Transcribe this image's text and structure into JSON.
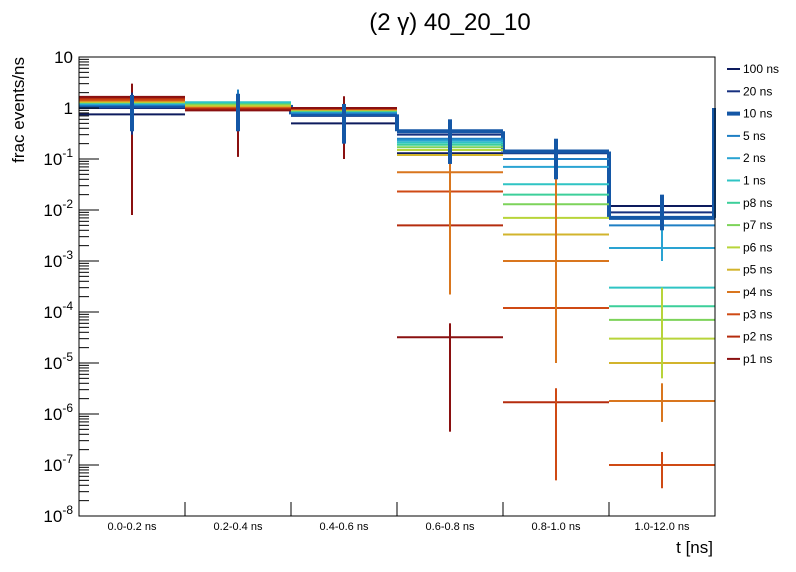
{
  "chart_data": {
    "type": "step-histogram",
    "title": "(2 γ) 40_20_10",
    "xlabel": "t [ns]",
    "ylabel": "frac events/ns",
    "yscale": "log",
    "ylim": [
      1e-08,
      10
    ],
    "categories": [
      "0.0-0.2 ns",
      "0.2-0.4 ns",
      "0.4-0.6 ns",
      "0.6-0.8 ns",
      "0.8-1.0 ns",
      "1.0-12.0 ns"
    ],
    "y_ticks": [
      {
        "base": "10",
        "exp": "-8",
        "value": 1e-08
      },
      {
        "base": "10",
        "exp": "-7",
        "value": 1e-07
      },
      {
        "base": "10",
        "exp": "-6",
        "value": 1e-06
      },
      {
        "base": "10",
        "exp": "-5",
        "value": 1e-05
      },
      {
        "base": "10",
        "exp": "-4",
        "value": 0.0001
      },
      {
        "base": "10",
        "exp": "-3",
        "value": 0.001
      },
      {
        "base": "10",
        "exp": "-2",
        "value": 0.01
      },
      {
        "base": "10",
        "exp": "-1",
        "value": 0.1
      },
      {
        "base": "1",
        "exp": "",
        "value": 1
      },
      {
        "base": "10",
        "exp": "",
        "value": 10
      }
    ],
    "series": [
      {
        "name": "100 ns",
        "color": "#0d1b5e",
        "values": [
          0.75,
          0.95,
          0.5,
          0.13,
          0.1,
          0.012
        ]
      },
      {
        "name": "20 ns",
        "color": "#16307f",
        "values": [
          1.0,
          1.05,
          0.7,
          0.3,
          0.13,
          0.009
        ]
      },
      {
        "name": "10 ns",
        "color": "#1457a6",
        "bold": true,
        "values": [
          1.1,
          1.15,
          0.75,
          0.35,
          0.14,
          0.007
        ]
      },
      {
        "name": "5 ns",
        "color": "#1f7fc4",
        "values": [
          1.15,
          1.2,
          0.8,
          0.25,
          0.1,
          0.005
        ]
      },
      {
        "name": "2 ns",
        "color": "#2aa3d2",
        "values": [
          1.2,
          1.25,
          0.85,
          0.23,
          0.07,
          0.0018
        ]
      },
      {
        "name": "1 ns",
        "color": "#2fc4c4",
        "values": [
          1.25,
          1.3,
          0.87,
          0.21,
          0.032,
          0.0003
        ]
      },
      {
        "name": "p8 ns",
        "color": "#3ccf9a",
        "values": [
          1.28,
          1.2,
          0.88,
          0.19,
          0.02,
          0.00013
        ]
      },
      {
        "name": "p7 ns",
        "color": "#7dd35a",
        "values": [
          1.3,
          1.15,
          0.9,
          0.17,
          0.013,
          7e-05
        ]
      },
      {
        "name": "p6 ns",
        "color": "#b8d43a",
        "values": [
          1.32,
          1.1,
          0.92,
          0.15,
          0.007,
          3e-05
        ]
      },
      {
        "name": "p5 ns",
        "color": "#d2b42c",
        "values": [
          1.35,
          1.05,
          0.93,
          0.12,
          0.0033,
          1e-05
        ]
      },
      {
        "name": "p4 ns",
        "color": "#d9761e",
        "values": [
          1.4,
          1.0,
          0.95,
          0.055,
          0.001,
          1.8e-06
        ]
      },
      {
        "name": "p3 ns",
        "color": "#cf4a14",
        "values": [
          1.45,
          0.98,
          0.97,
          0.023,
          0.00012,
          1e-07
        ]
      },
      {
        "name": "p2 ns",
        "color": "#b52c0e",
        "values": [
          1.55,
          0.95,
          0.98,
          0.005,
          1.7e-06,
          null
        ]
      },
      {
        "name": "p1 ns",
        "color": "#8a1010",
        "values": [
          1.65,
          0.9,
          1.0,
          3.2e-05,
          null,
          null
        ]
      }
    ],
    "error_bars": [
      {
        "series": "p1 ns",
        "category": 0,
        "low": 0.008,
        "high": 3.0
      },
      {
        "series": "20 ns",
        "category": 0,
        "low": 0.3,
        "high": 2.0
      },
      {
        "series": "10 ns",
        "category": 0,
        "low": 0.35,
        "high": 1.8
      },
      {
        "series": "5 ns",
        "category": 1,
        "low": 0.35,
        "high": 2.3
      },
      {
        "series": "p1 ns",
        "category": 1,
        "low": 0.11,
        "high": 1.5
      },
      {
        "series": "10 ns",
        "category": 1,
        "low": 0.35,
        "high": 1.9
      },
      {
        "series": "p1 ns",
        "category": 2,
        "low": 0.1,
        "high": 1.7
      },
      {
        "series": "10 ns",
        "category": 2,
        "low": 0.2,
        "high": 1.2
      },
      {
        "series": "p4 ns",
        "category": 3,
        "low": 0.00022,
        "high": 0.2
      },
      {
        "series": "p1 ns",
        "category": 3,
        "low": 4.5e-07,
        "high": 6e-05
      },
      {
        "series": "10 ns",
        "category": 3,
        "low": 0.08,
        "high": 0.6
      },
      {
        "series": "p4 ns",
        "category": 4,
        "low": 1e-05,
        "high": 0.1
      },
      {
        "series": "p3 ns",
        "category": 4,
        "low": 5e-08,
        "high": 3.2e-06
      },
      {
        "series": "10 ns",
        "category": 4,
        "low": 0.04,
        "high": 0.25
      },
      {
        "series": "2 ns",
        "category": 5,
        "low": 0.001,
        "high": 0.007
      },
      {
        "series": "p6 ns",
        "category": 5,
        "low": 5e-06,
        "high": 0.0003
      },
      {
        "series": "p4 ns",
        "category": 5,
        "low": 7e-07,
        "high": 4e-06
      },
      {
        "series": "p3 ns",
        "category": 5,
        "low": 3.5e-08,
        "high": 1.8e-07
      },
      {
        "series": "10 ns",
        "category": 5,
        "low": 0.004,
        "high": 0.02
      }
    ]
  }
}
